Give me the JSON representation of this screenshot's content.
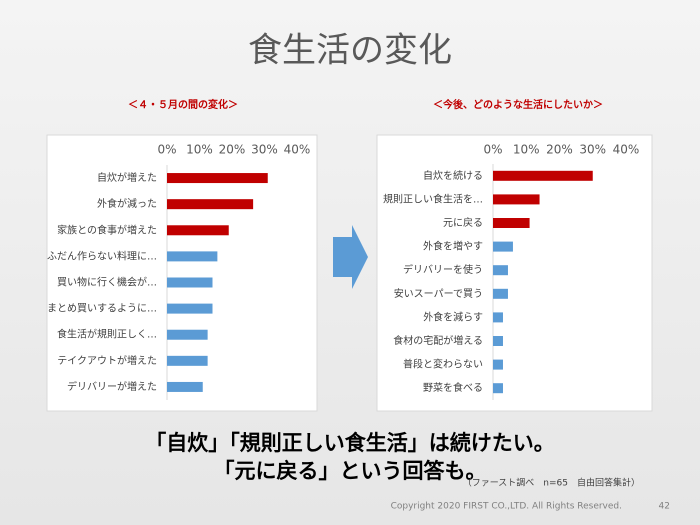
{
  "title": "食生活の変化",
  "chart_data": [
    {
      "type": "barh",
      "title": "＜４・５月の間の変化＞",
      "categories": [
        "自炊が増えた",
        "外食が減った",
        "家族との食事が増えた",
        "ふだん作らない料理に…",
        "買い物に行く機会が…",
        "まとめ買いするように…",
        "食生活が規則正しく…",
        "テイクアウトが増えた",
        "デリバリーが増えた"
      ],
      "values": [
        31,
        26.5,
        19,
        15.5,
        14,
        14,
        12.5,
        12.5,
        11
      ],
      "colors": [
        "#c00000",
        "#c00000",
        "#c00000",
        "#5b9bd5",
        "#5b9bd5",
        "#5b9bd5",
        "#5b9bd5",
        "#5b9bd5",
        "#5b9bd5"
      ],
      "xlim": [
        0,
        40
      ],
      "xticks": [
        {
          "value": 0,
          "label": "0%"
        },
        {
          "value": 10,
          "label": "10%"
        },
        {
          "value": 20,
          "label": "20%"
        },
        {
          "value": 30,
          "label": "30%"
        },
        {
          "value": 40,
          "label": "40%"
        }
      ]
    },
    {
      "type": "barh",
      "title": "＜今後、どのような生活にしたいか＞",
      "categories": [
        "自炊を続ける",
        "規則正しい食生活を…",
        "元に戻る",
        "外食を増やす",
        "デリバリーを使う",
        "安いスーパーで買う",
        "外食を減らす",
        "食材の宅配が増える",
        "普段と変わらない",
        "野菜を食べる"
      ],
      "values": [
        30,
        14,
        11,
        6,
        4.5,
        4.5,
        3,
        3,
        3,
        3
      ],
      "colors": [
        "#c00000",
        "#c00000",
        "#c00000",
        "#5b9bd5",
        "#5b9bd5",
        "#5b9bd5",
        "#5b9bd5",
        "#5b9bd5",
        "#5b9bd5",
        "#5b9bd5"
      ],
      "xlim": [
        0,
        40
      ],
      "xticks": [
        {
          "value": 0,
          "label": "0%"
        },
        {
          "value": 10,
          "label": "10%"
        },
        {
          "value": 20,
          "label": "20%"
        },
        {
          "value": 30,
          "label": "30%"
        },
        {
          "value": 40,
          "label": "40%"
        }
      ]
    }
  ],
  "conclusion": [
    "「自炊」「規則正しい食生活」は続けたい。",
    "「元に戻る」という回答も。"
  ],
  "note": "（ファースト調べ　n=65　自由回答集計）",
  "footer": {
    "copyright": "Copyright 2020 FIRST CO.,LTD.  All Rights Reserved.",
    "page": "42"
  }
}
